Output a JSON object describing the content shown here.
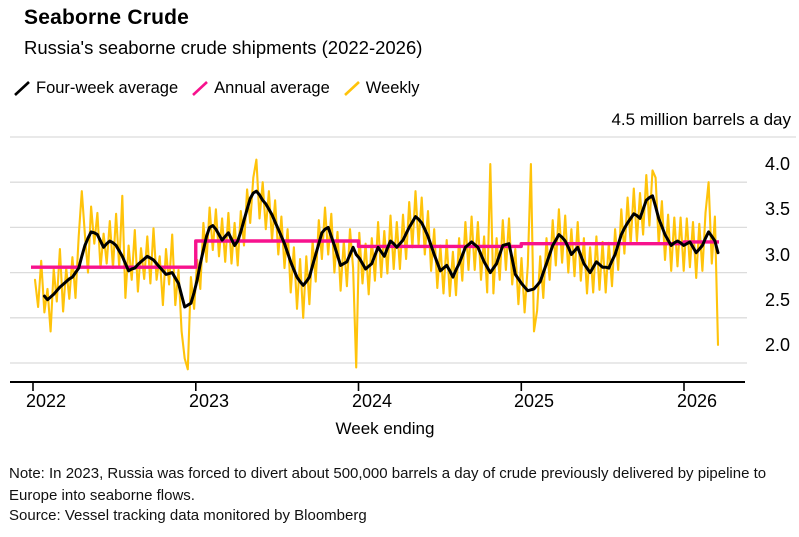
{
  "page": {
    "title": "Seaborne Crude",
    "subtitle": "Russia's seaborne crude shipments (2022-2026)"
  },
  "legend": {
    "items": [
      {
        "label": "Four-week average",
        "color": "#000000"
      },
      {
        "label": "Annual average",
        "color": "#f7128d"
      },
      {
        "label": "Weekly",
        "color": "#ffc30a"
      }
    ]
  },
  "axes": {
    "unit_label": "4.5 million barrels a day",
    "xlabel": "Week ending",
    "yticks": [
      2.0,
      2.5,
      3.0,
      3.5,
      4.0
    ],
    "ytop": 4.5,
    "xticks": [
      2022,
      2023,
      2024,
      2025,
      2026
    ]
  },
  "footer": {
    "note": "Note: In 2023, Russia was forced to divert about 500,000 barrels a day of crude previously delivered by pipeline to Europe into seaborne flows.",
    "source": "Source: Vessel tracking data monitored by Bloomberg"
  },
  "colors": {
    "grid": "#dcdcdc",
    "axis": "#000000",
    "weekly": "#ffc30a",
    "four_week": "#000000",
    "annual": "#f7128d"
  },
  "chart_data": {
    "type": "line",
    "title": "Seaborne Crude",
    "subtitle": "Russia's seaborne crude shipments (2022-2026)",
    "xlabel": "Week ending",
    "ylabel": "million barrels a day",
    "x_unit": "weekly observations, week ending Jan 2022 through mid-Mar 2026",
    "ylim": [
      1.75,
      4.5
    ],
    "yticks": [
      2.0,
      2.5,
      3.0,
      3.5,
      4.0,
      4.5
    ],
    "xticks": [
      2022,
      2023,
      2024,
      2025,
      2026
    ],
    "grid": true,
    "legend_position": "top",
    "weeks": 220,
    "series": [
      {
        "name": "Weekly",
        "color": "#ffc30a",
        "values": [
          2.92,
          2.62,
          3.13,
          2.56,
          2.82,
          2.35,
          3.04,
          2.68,
          3.26,
          2.57,
          3.05,
          2.71,
          3.17,
          2.72,
          3.4,
          3.9,
          3.42,
          3.0,
          3.73,
          3.32,
          3.66,
          3.05,
          3.43,
          3.1,
          3.57,
          3.05,
          3.65,
          3.06,
          3.85,
          2.72,
          3.3,
          2.92,
          3.47,
          2.79,
          3.27,
          2.93,
          3.4,
          2.88,
          3.49,
          2.92,
          3.18,
          2.64,
          3.26,
          2.87,
          3.42,
          2.64,
          3.03,
          2.35,
          2.05,
          1.93,
          2.95,
          2.6,
          3.14,
          2.82,
          3.55,
          3.12,
          3.72,
          3.25,
          3.7,
          3.18,
          3.6,
          3.12,
          3.66,
          3.1,
          3.55,
          3.08,
          3.68,
          3.3,
          3.92,
          3.55,
          4.05,
          4.25,
          3.6,
          4.0,
          3.48,
          3.9,
          3.36,
          3.8,
          3.2,
          3.62,
          3.05,
          3.48,
          2.78,
          3.28,
          2.6,
          3.15,
          2.5,
          3.18,
          2.65,
          3.35,
          2.9,
          3.58,
          3.15,
          3.72,
          3.2,
          3.65,
          3.0,
          3.45,
          2.8,
          3.35,
          2.85,
          3.48,
          3.05,
          1.95,
          3.44,
          2.88,
          3.32,
          2.76,
          3.38,
          2.91,
          3.56,
          2.95,
          3.46,
          2.99,
          3.63,
          3.04,
          3.56,
          3.04,
          3.64,
          3.15,
          3.78,
          3.28,
          3.9,
          3.31,
          3.83,
          3.2,
          3.68,
          3.02,
          3.48,
          2.83,
          3.3,
          2.77,
          3.36,
          2.74,
          3.23,
          2.75,
          3.38,
          2.91,
          3.56,
          3.03,
          3.62,
          3.03,
          3.56,
          2.92,
          3.4,
          2.78,
          4.2,
          2.77,
          3.38,
          2.92,
          3.58,
          3.03,
          3.6,
          2.87,
          3.26,
          2.65,
          3.16,
          2.56,
          3.08,
          4.2,
          2.35,
          2.58,
          3.18,
          2.72,
          3.38,
          2.92,
          3.58,
          3.08,
          3.7,
          3.11,
          3.63,
          3.0,
          3.48,
          2.96,
          3.56,
          2.91,
          3.38,
          2.77,
          3.28,
          2.78,
          3.4,
          2.81,
          3.34,
          2.78,
          3.33,
          2.85,
          3.48,
          3.03,
          3.7,
          3.21,
          3.83,
          3.32,
          3.93,
          3.35,
          3.88,
          3.42,
          4.08,
          3.52,
          4.13,
          4.05,
          3.32,
          3.79,
          3.14,
          3.64,
          3.02,
          3.61,
          3.07,
          3.61,
          3.02,
          3.6,
          3.06,
          3.56,
          2.94,
          3.54,
          3.02,
          3.66,
          4.0,
          3.1,
          3.62,
          2.2
        ]
      },
      {
        "name": "Four-week average",
        "color": "#000000",
        "values": [
          null,
          null,
          null,
          2.74,
          2.7,
          2.73,
          2.76,
          2.8,
          2.84,
          2.87,
          2.9,
          2.93,
          2.95,
          3.0,
          3.05,
          3.18,
          3.3,
          3.38,
          3.45,
          3.44,
          3.42,
          3.35,
          3.28,
          3.32,
          3.35,
          3.33,
          3.3,
          3.24,
          3.18,
          3.1,
          3.02,
          3.04,
          3.05,
          3.09,
          3.12,
          3.15,
          3.18,
          3.16,
          3.14,
          3.1,
          3.06,
          3.02,
          2.98,
          2.99,
          3.0,
          2.94,
          2.88,
          2.75,
          2.62,
          2.64,
          2.66,
          2.78,
          2.92,
          3.1,
          3.25,
          3.4,
          3.5,
          3.52,
          3.48,
          3.42,
          3.36,
          3.4,
          3.44,
          3.37,
          3.3,
          3.35,
          3.45,
          3.58,
          3.7,
          3.82,
          3.88,
          3.9,
          3.86,
          3.8,
          3.76,
          3.7,
          3.64,
          3.56,
          3.48,
          3.4,
          3.32,
          3.22,
          3.12,
          3.03,
          2.95,
          2.9,
          2.86,
          2.9,
          2.95,
          3.08,
          3.2,
          3.32,
          3.44,
          3.48,
          3.5,
          3.4,
          3.3,
          3.19,
          3.08,
          3.1,
          3.12,
          3.2,
          3.28,
          3.2,
          3.16,
          3.1,
          3.04,
          3.07,
          3.1,
          3.19,
          3.28,
          3.23,
          3.18,
          3.27,
          3.35,
          3.32,
          3.28,
          3.32,
          3.36,
          3.43,
          3.5,
          3.56,
          3.62,
          3.59,
          3.55,
          3.48,
          3.4,
          3.3,
          3.2,
          3.11,
          3.02,
          3.05,
          3.08,
          3.02,
          2.95,
          3.03,
          3.1,
          3.19,
          3.28,
          3.31,
          3.34,
          3.31,
          3.28,
          3.2,
          3.12,
          3.06,
          3.0,
          3.05,
          3.1,
          3.2,
          3.3,
          3.31,
          3.32,
          3.15,
          2.98,
          2.93,
          2.88,
          2.84,
          2.8,
          2.81,
          2.82,
          2.86,
          2.9,
          3.0,
          3.1,
          3.2,
          3.3,
          3.36,
          3.42,
          3.39,
          3.35,
          3.28,
          3.2,
          3.24,
          3.28,
          3.19,
          3.1,
          3.05,
          3.0,
          3.06,
          3.12,
          3.09,
          3.06,
          3.06,
          3.05,
          3.13,
          3.2,
          3.31,
          3.42,
          3.49,
          3.55,
          3.6,
          3.65,
          3.63,
          3.6,
          3.7,
          3.8,
          3.83,
          3.85,
          3.73,
          3.6,
          3.51,
          3.42,
          3.36,
          3.3,
          3.33,
          3.35,
          3.33,
          3.3,
          3.32,
          3.34,
          3.28,
          3.22,
          3.26,
          3.3,
          3.38,
          3.45,
          3.4,
          3.35,
          3.22
        ]
      },
      {
        "name": "Annual average",
        "color": "#f7128d",
        "steps": [
          {
            "year": 2022,
            "value": 3.06
          },
          {
            "year": 2023,
            "value": 3.35
          },
          {
            "year": 2024,
            "value": 3.29
          },
          {
            "year": 2025,
            "value": 3.32
          },
          {
            "year": 2026,
            "value": 3.34
          }
        ]
      }
    ]
  }
}
